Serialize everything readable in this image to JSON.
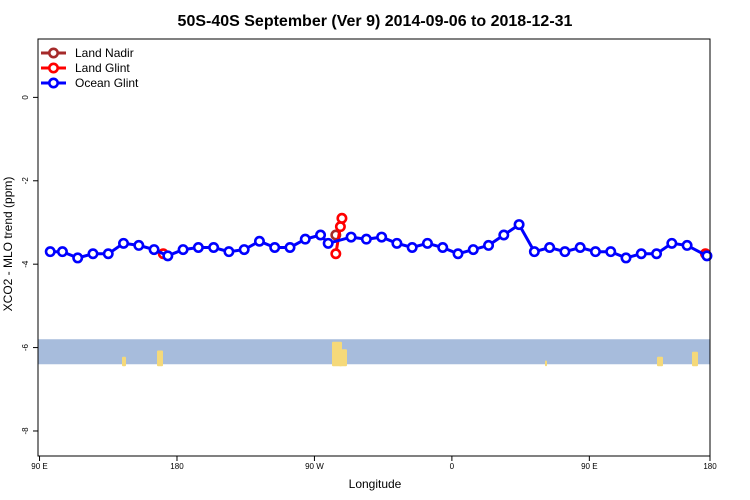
{
  "chart_data": {
    "type": "line",
    "title": "50S-40S September (Ver 9)   2014-09-06 to 2018-12-31",
    "xlabel": "Longitude",
    "ylabel": "XCO2 - MLO trend (ppm)",
    "xlim": [
      -1,
      439
    ],
    "ylim": [
      -8.6,
      1.4
    ],
    "x_ticks": [
      {
        "pos": 0,
        "label": "90 E"
      },
      {
        "pos": 90,
        "label": "180"
      },
      {
        "pos": 180,
        "label": "90 W"
      },
      {
        "pos": 270,
        "label": "0"
      },
      {
        "pos": 360,
        "label": "90 E"
      },
      {
        "pos": 450,
        "label": "180"
      }
    ],
    "y_ticks": [
      0,
      -2,
      -4,
      -6,
      -8
    ],
    "legend": {
      "placement": "top-left",
      "entries": [
        {
          "name": "Land Nadir",
          "color": "#a52a2a"
        },
        {
          "name": "Land Glint",
          "color": "#ff0000"
        },
        {
          "name": "Ocean Glint",
          "color": "#0000ff"
        }
      ]
    },
    "land_band": {
      "y_top": -5.8,
      "y_bottom": -6.4,
      "color": "#a7bcdc",
      "land_color": "#f5d97a"
    },
    "series": [
      {
        "name": "Land Nadir",
        "color": "#a52a2a",
        "x": [
          194
        ],
        "y": [
          -3.3
        ]
      },
      {
        "name": "Land Glint",
        "color": "#ff0000",
        "x": [
          81,
          194,
          197,
          198,
          436
        ],
        "y": [
          -3.75,
          -3.75,
          -3.1,
          -2.9,
          -3.75
        ]
      },
      {
        "name": "Ocean Glint",
        "color": "#0000ff",
        "x": [
          7,
          15,
          25,
          35,
          45,
          55,
          65,
          75,
          84,
          94,
          104,
          114,
          124,
          134,
          144,
          154,
          164,
          174,
          184,
          189,
          204,
          214,
          224,
          234,
          244,
          254,
          264,
          274,
          284,
          294,
          304,
          314,
          324,
          334,
          344,
          354,
          364,
          374,
          384,
          394,
          404,
          414,
          424,
          437
        ],
        "y": [
          -3.7,
          -3.7,
          -3.85,
          -3.75,
          -3.75,
          -3.5,
          -3.55,
          -3.65,
          -3.8,
          -3.65,
          -3.6,
          -3.6,
          -3.7,
          -3.65,
          -3.45,
          -3.6,
          -3.6,
          -3.4,
          -3.3,
          -3.5,
          -3.35,
          -3.4,
          -3.35,
          -3.5,
          -3.6,
          -3.5,
          -3.6,
          -3.75,
          -3.65,
          -3.55,
          -3.3,
          -3.05,
          -3.7,
          -3.6,
          -3.7,
          -3.6,
          -3.7,
          -3.7,
          -3.85,
          -3.75,
          -3.75,
          -3.5,
          -3.55,
          -3.8
        ]
      }
    ]
  }
}
